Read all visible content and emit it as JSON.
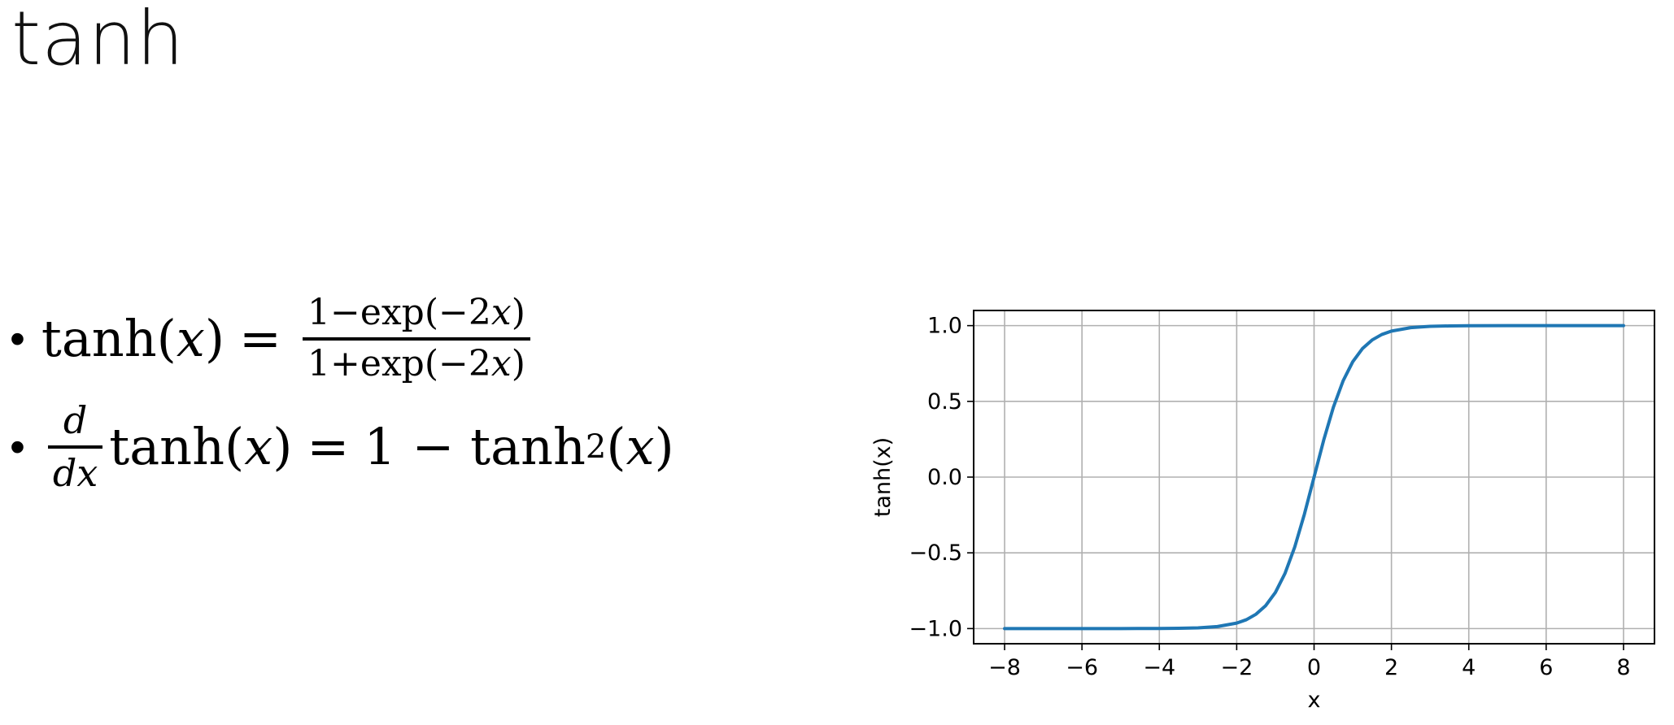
{
  "slide": {
    "title": "tanh"
  },
  "formulas": {
    "f1": {
      "lhs": "tanh(",
      "var": "x",
      "rhs_close": ")",
      "eq": "=",
      "num_pre": "1−exp(−2",
      "num_var": "x",
      "num_post": ")",
      "den_pre": "1+exp(−2",
      "den_var": "x",
      "den_post": ")"
    },
    "f2": {
      "d_num": "d",
      "d_den": "dx",
      "body_pre": "tanh(",
      "body_var": "x",
      "body_post": ")",
      "eq": "=",
      "rhs_pre": "1 − tanh",
      "rhs_sup": "2",
      "rhs_open": "(",
      "rhs_var": "x",
      "rhs_close": ")"
    },
    "bullet": "•"
  },
  "chart_data": {
    "type": "line",
    "xlabel": "x",
    "ylabel": "tanh(x)",
    "xlim": [
      -8.8,
      8.8
    ],
    "ylim": [
      -1.1,
      1.1
    ],
    "xticks": [
      -8,
      -6,
      -4,
      -2,
      0,
      2,
      4,
      6,
      8
    ],
    "xtick_labels": [
      "−8",
      "−6",
      "−4",
      "−2",
      "0",
      "2",
      "4",
      "6",
      "8"
    ],
    "yticks": [
      -1.0,
      -0.5,
      0.0,
      0.5,
      1.0
    ],
    "ytick_labels": [
      "−1.0",
      "−0.5",
      "0.0",
      "0.5",
      "1.0"
    ],
    "grid": true,
    "series": [
      {
        "color": "#1f77b4",
        "x": [
          -8,
          -7,
          -6,
          -5,
          -4,
          -3.5,
          -3,
          -2.5,
          -2,
          -1.75,
          -1.5,
          -1.25,
          -1,
          -0.75,
          -0.5,
          -0.25,
          0,
          0.25,
          0.5,
          0.75,
          1,
          1.25,
          1.5,
          1.75,
          2,
          2.5,
          3,
          3.5,
          4,
          5,
          6,
          7,
          8
        ],
        "y": [
          -1.0,
          -1.0,
          -1.0,
          -0.9999,
          -0.9993,
          -0.9982,
          -0.9951,
          -0.9866,
          -0.964,
          -0.9414,
          -0.9051,
          -0.8483,
          -0.7616,
          -0.6351,
          -0.4621,
          -0.2449,
          0.0,
          0.2449,
          0.4621,
          0.6351,
          0.7616,
          0.8483,
          0.9051,
          0.9414,
          0.964,
          0.9866,
          0.9951,
          0.9982,
          0.9993,
          0.9999,
          1.0,
          1.0,
          1.0
        ]
      }
    ]
  }
}
